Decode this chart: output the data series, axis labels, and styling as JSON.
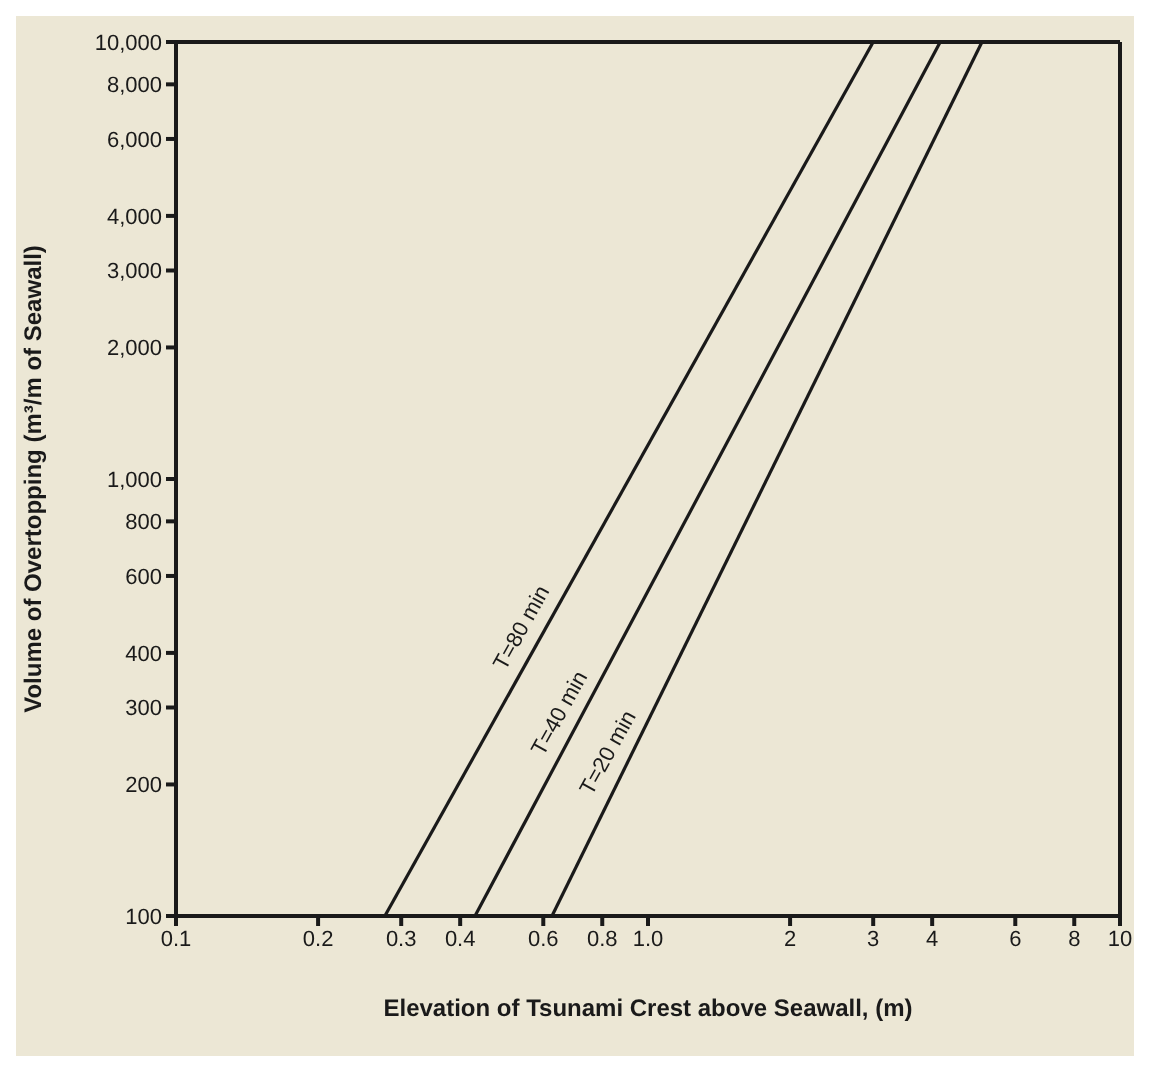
{
  "chart_data": {
    "type": "line",
    "xlabel": "Elevation of Tsunami Crest above Seawall, (m)",
    "ylabel": "Volume of Overtopping (m³/m of Seawall)",
    "log": "xy",
    "xlim": [
      0.1,
      10
    ],
    "ylim": [
      100,
      10000
    ],
    "xticks": [
      0.1,
      0.2,
      0.3,
      0.4,
      0.6,
      0.8,
      {
        "value": 1,
        "label": "1.0"
      },
      2,
      3,
      4,
      6,
      8,
      10
    ],
    "yticks": [
      100,
      200,
      300,
      400,
      600,
      800,
      {
        "value": 1000,
        "label": "1,000"
      },
      {
        "value": 2000,
        "label": "2,000"
      },
      {
        "value": 3000,
        "label": "3,000"
      },
      {
        "value": 4000,
        "label": "4,000"
      },
      {
        "value": 6000,
        "label": "6,000"
      },
      {
        "value": 8000,
        "label": "8,000"
      },
      {
        "value": 10000,
        "label": "10,000"
      }
    ],
    "grid": false,
    "marker": "none",
    "line_style": "solid",
    "series": [
      {
        "color": "#1a1a1a",
        "x": [
          0.277,
          3.0
        ],
        "values": [
          100,
          10000
        ]
      },
      {
        "color": "#1a1a1a",
        "x": [
          0.43,
          4.16
        ],
        "values": [
          100,
          10000
        ]
      },
      {
        "color": "#1a1a1a",
        "x": [
          0.626,
          5.1
        ],
        "values": [
          100,
          10000
        ]
      }
    ],
    "annotations": [
      {
        "text": "T=80 min",
        "x": 0.59,
        "y": 433
      },
      {
        "text": "T=40 min",
        "x": 0.71,
        "y": 276
      },
      {
        "text": "T=20 min",
        "x": 0.9,
        "y": 224
      }
    ]
  }
}
